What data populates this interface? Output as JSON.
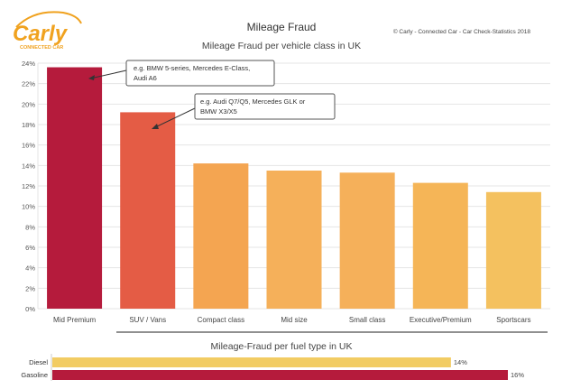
{
  "header": {
    "title": "Mileage Fraud",
    "copyright": "© Carly - Connected Car - Car Check-Statistics 2018"
  },
  "logo": {
    "word": "Carly",
    "tagline": "CONNECTED CAR",
    "accent_color": "#f0a21f",
    "text_color": "#f0a21f"
  },
  "colors": {
    "dark_red": "#b51b3c",
    "red_orange": "#e45c45",
    "orange": "#f4a551",
    "light_orange": "#f5b557",
    "yellow": "#f2cc63",
    "grid": "#e4e4e4",
    "axis_text": "#555555"
  },
  "chart_data": [
    {
      "type": "bar",
      "title": "Mileage Fraud per vehicle class in UK",
      "categories": [
        "Mid Premium",
        "SUV / Vans",
        "Compact class",
        "Mid size",
        "Small class",
        "Executive/Premium",
        "Sportscars"
      ],
      "values": [
        23.6,
        19.2,
        14.2,
        13.5,
        13.3,
        12.3,
        11.4
      ],
      "value_unit": "%",
      "bar_colors": [
        "#b51b3c",
        "#e45c45",
        "#f4a551",
        "#f5b05a",
        "#f5b05a",
        "#f5b557",
        "#f4c15f"
      ],
      "ylim": [
        0,
        24
      ],
      "yticks": [
        "0%",
        "2%",
        "4%",
        "6%",
        "8%",
        "10%",
        "12%",
        "14%",
        "16%",
        "18%",
        "20%",
        "22%",
        "24%"
      ],
      "grid": true,
      "annotations": [
        {
          "category": "Mid Premium",
          "text_lines": [
            "e.g. BMW 5-series, Mercedes E-Class,",
            "Audi A6"
          ]
        },
        {
          "category": "SUV / Vans",
          "text_lines": [
            "e.g. Audi Q7/Q5, Mercedes GLK or",
            "BMW X3/X5"
          ]
        }
      ]
    },
    {
      "type": "bar",
      "orientation": "horizontal",
      "title": "Mileage-Fraud per fuel type in UK",
      "categories": [
        "Diesel",
        "Gasoline"
      ],
      "values": [
        14,
        16
      ],
      "value_labels": [
        "14%",
        "16%"
      ],
      "bar_colors": [
        "#f2cc63",
        "#b51b3c"
      ],
      "xlim": [
        0,
        16
      ]
    }
  ]
}
